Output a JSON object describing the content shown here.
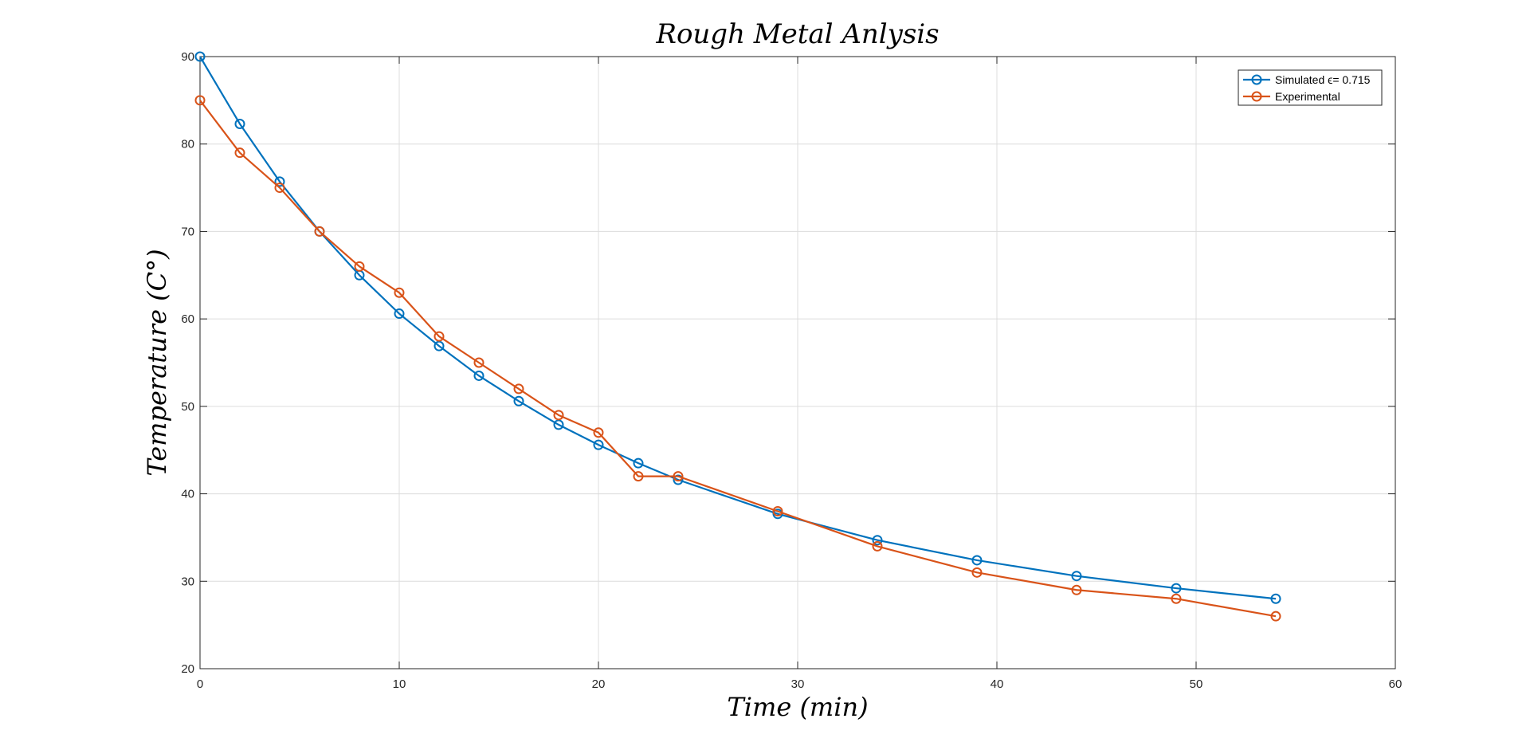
{
  "chart_data": {
    "type": "line",
    "title": "Rough  Metal  Anlysis",
    "xlabel": "Time  (min)",
    "ylabel": "Temperature  (C°)",
    "xlim": [
      0,
      60
    ],
    "ylim": [
      20,
      90
    ],
    "xticks": [
      0,
      10,
      20,
      30,
      40,
      50,
      60
    ],
    "yticks": [
      20,
      30,
      40,
      50,
      60,
      70,
      80,
      90
    ],
    "grid": true,
    "legend_position": "top-right",
    "series": [
      {
        "name": "Simulated ϵ= 0.715",
        "color": "#0072BD",
        "marker": "circle",
        "x": [
          0,
          2,
          4,
          6,
          8,
          10,
          12,
          14,
          16,
          18,
          20,
          22,
          24,
          29,
          34,
          39,
          44,
          49,
          54
        ],
        "y": [
          90,
          82.3,
          75.7,
          70.0,
          65.0,
          60.6,
          56.9,
          53.5,
          50.6,
          47.9,
          45.6,
          43.5,
          41.6,
          37.7,
          34.7,
          32.4,
          30.6,
          29.2,
          28.0
        ]
      },
      {
        "name": "Experimental",
        "color": "#D95319",
        "marker": "circle",
        "x": [
          0,
          2,
          4,
          6,
          8,
          10,
          12,
          14,
          16,
          18,
          20,
          22,
          24,
          29,
          34,
          39,
          44,
          49,
          54
        ],
        "y": [
          85,
          79,
          75,
          70,
          66,
          63,
          58,
          55,
          52,
          49,
          47,
          42,
          42,
          38,
          34,
          31,
          29,
          28,
          26
        ]
      }
    ]
  }
}
